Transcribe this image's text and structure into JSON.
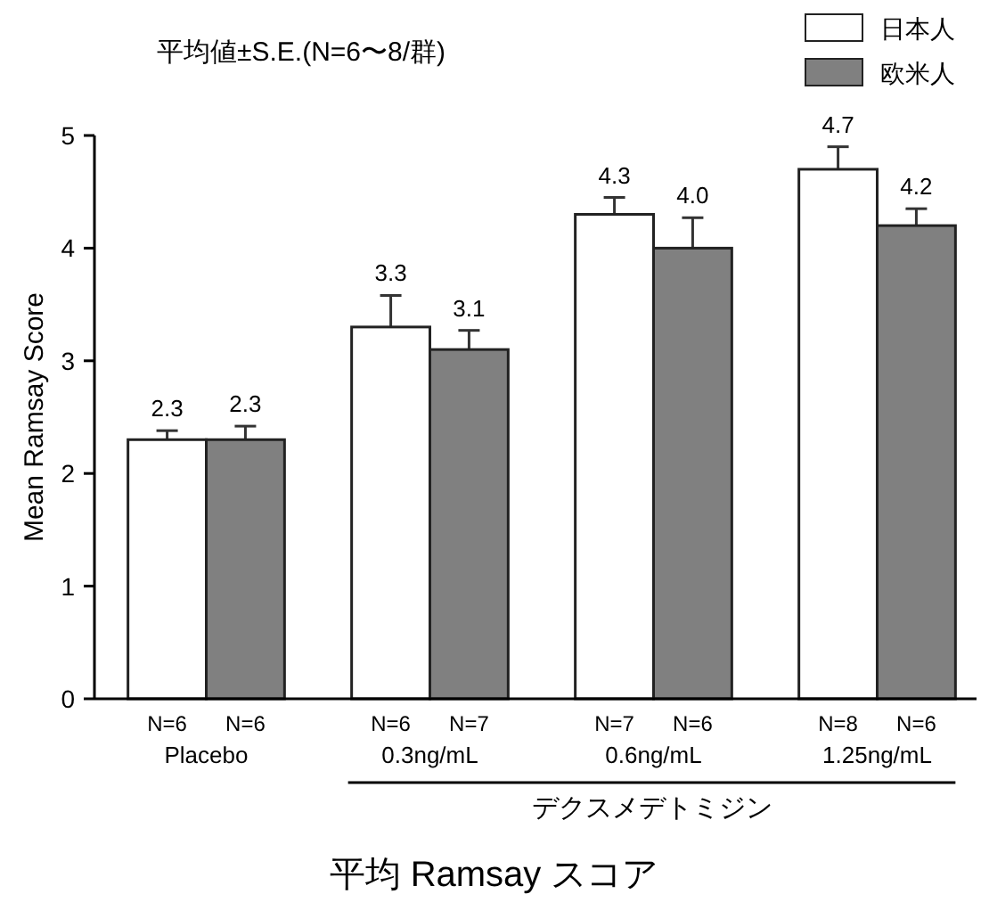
{
  "chart_data": {
    "type": "bar",
    "title": "平均 Ramsay スコア",
    "subtitle": "平均値±S.E.(N=6〜8/群)",
    "ylabel": "Mean Ramsay Score",
    "categories": [
      "Placebo",
      "0.3ng/mL",
      "0.6ng/mL",
      "1.25ng/mL"
    ],
    "series": [
      {
        "name": "日本人",
        "color": "#ffffff",
        "values": [
          2.3,
          3.3,
          4.3,
          4.7
        ],
        "value_labels": [
          "2.3",
          "3.3",
          "4.3",
          "4.7"
        ],
        "errors": [
          0.08,
          0.28,
          0.15,
          0.2
        ]
      },
      {
        "name": "欧米人",
        "color": "#808080",
        "values": [
          2.3,
          3.1,
          4.0,
          4.2
        ],
        "value_labels": [
          "2.3",
          "3.1",
          "4.0",
          "4.2"
        ],
        "errors": [
          0.12,
          0.17,
          0.27,
          0.15
        ]
      }
    ],
    "ylim": [
      0,
      5
    ],
    "yticks": [
      0,
      1,
      2,
      3,
      4,
      5
    ],
    "grid": false,
    "legend": "top right",
    "annotations": [
      "N=6",
      "N=6",
      "N=6",
      "N=7",
      "N=7",
      "N=6",
      "N=8",
      "N=6",
      "デクスメデトミジン"
    ]
  }
}
